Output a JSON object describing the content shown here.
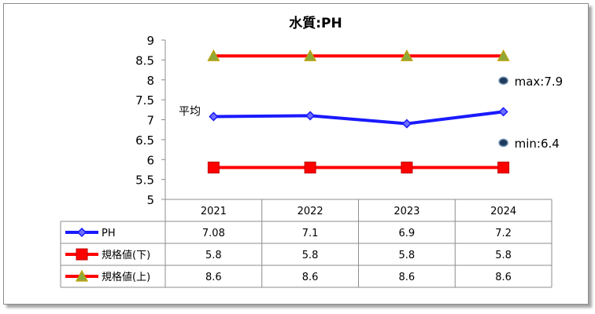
{
  "chart_data": {
    "type": "line",
    "title": "水質:PH",
    "categories": [
      "2021",
      "2022",
      "2023",
      "2024"
    ],
    "ylim": [
      5,
      9
    ],
    "yticks": [
      "9",
      "8.5",
      "8",
      "7.5",
      "7",
      "6.5",
      "6",
      "5.5",
      "5"
    ],
    "grid": false,
    "legend": "data-table",
    "series": [
      {
        "name": "PH",
        "values": [
          7.08,
          7.1,
          6.9,
          7.2
        ],
        "color": "#1a1aff",
        "marker": "diamond",
        "labels": [
          "7.08",
          "7.1",
          "6.9",
          "7.2"
        ]
      },
      {
        "name": "規格値(下)",
        "values": [
          5.8,
          5.8,
          5.8,
          5.8
        ],
        "color": "#ff0000",
        "marker": "square",
        "labels": [
          "5.8",
          "5.8",
          "5.8",
          "5.8"
        ]
      },
      {
        "name": "規格値(上)",
        "values": [
          8.6,
          8.6,
          8.6,
          8.6
        ],
        "color": "#ff0000",
        "marker": "triangle",
        "labels": [
          "8.6",
          "8.6",
          "8.6",
          "8.6"
        ]
      }
    ],
    "annotations": [
      {
        "text": "max:7.9",
        "y": 7.98
      },
      {
        "text": "min:6.4",
        "y": 6.42
      }
    ],
    "average_label": "平均"
  }
}
